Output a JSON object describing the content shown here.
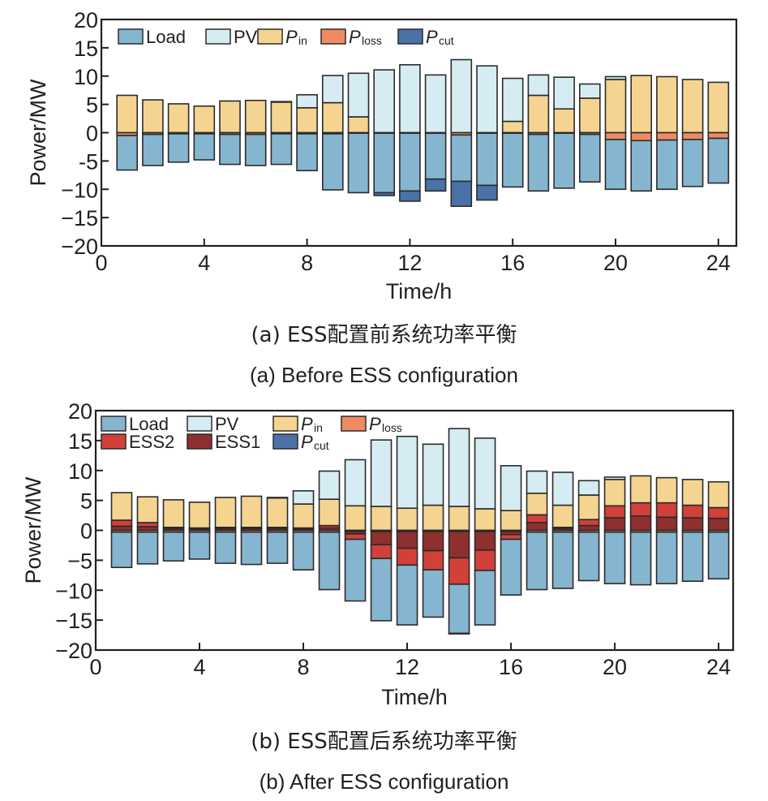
{
  "captions": {
    "a_cn": "(a) ESS配置前系统功率平衡",
    "a_en": "(a) Before ESS configuration",
    "b_cn": "(b) ESS配置后系统功率平衡",
    "b_en": "(b) After ESS configuration"
  },
  "colors": {
    "Load": "#86b5cf",
    "PV": "#d5ecf2",
    "Pin": "#f5d491",
    "Ploss": "#f08a62",
    "Pcut": "#4a72a8",
    "ESS2": "#d2403a",
    "ESS1": "#8e2f30",
    "edge": "#2b2b2b"
  },
  "chart_data": [
    {
      "type": "bar",
      "stacked": true,
      "title": "(a) Before ESS configuration",
      "xlabel": "Time/h",
      "ylabel": "Power/MW",
      "xlim": [
        0,
        24.7
      ],
      "ylim": [
        -20,
        20
      ],
      "xticks": [
        0,
        4,
        8,
        12,
        16,
        20,
        24
      ],
      "yticks": [
        20,
        15,
        10,
        5,
        0,
        -5,
        -10,
        -15,
        -20
      ],
      "ytick_labels": [
        "20",
        "15",
        "10",
        "5",
        "0",
        "-5",
        "−10",
        "−15",
        "−20"
      ],
      "grid": false,
      "legend_position": "top-left",
      "legend": [
        {
          "key": "Load",
          "label": "Load",
          "sub": ""
        },
        {
          "key": "PV",
          "label": "PV",
          "sub": ""
        },
        {
          "key": "Pin",
          "label": "P",
          "sub": "in"
        },
        {
          "key": "Ploss",
          "label": "P",
          "sub": "loss"
        },
        {
          "key": "Pcut",
          "label": "P",
          "sub": "cut"
        }
      ],
      "x": [
        1,
        2,
        3,
        4,
        5,
        6,
        7,
        8,
        9,
        10,
        11,
        12,
        13,
        14,
        15,
        16,
        17,
        18,
        19,
        20,
        21,
        22,
        23,
        24
      ],
      "positive_stack_order": [
        "Pin",
        "PV"
      ],
      "negative_stack_order": [
        "Ploss",
        "Load",
        "Pcut"
      ],
      "series": [
        {
          "name": "Pin",
          "values": [
            6.6,
            5.8,
            5.1,
            4.7,
            5.6,
            5.7,
            5.4,
            4.4,
            5.3,
            2.8,
            0,
            0,
            0,
            0,
            0,
            2.0,
            6.6,
            4.2,
            6.1,
            9.4,
            10.1,
            9.9,
            9.4,
            8.9
          ]
        },
        {
          "name": "PV",
          "values": [
            0,
            0,
            0,
            0,
            0,
            0,
            0.1,
            2.3,
            4.8,
            7.7,
            11.1,
            12.0,
            10.2,
            12.9,
            11.8,
            7.6,
            3.6,
            5.6,
            2.5,
            0.5,
            0,
            0,
            0,
            0
          ]
        },
        {
          "name": "Ploss",
          "values": [
            -0.5,
            -0.3,
            -0.2,
            -0.2,
            -0.3,
            -0.3,
            -0.2,
            -0.2,
            -0.2,
            -0.1,
            -0.1,
            -0.1,
            -0.1,
            -0.4,
            -0.1,
            -0.1,
            -0.3,
            -0.1,
            -0.3,
            -1.2,
            -1.4,
            -1.3,
            -1.2,
            -1.0
          ]
        },
        {
          "name": "Load",
          "values": [
            -6.1,
            -5.5,
            -5.0,
            -4.6,
            -5.3,
            -5.5,
            -5.4,
            -6.5,
            -9.9,
            -10.5,
            -10.5,
            -10.2,
            -8.1,
            -8.2,
            -9.2,
            -9.5,
            -10.0,
            -9.7,
            -8.4,
            -8.8,
            -8.9,
            -8.7,
            -8.3,
            -7.9
          ]
        },
        {
          "name": "Pcut",
          "values": [
            0,
            0,
            0,
            0,
            0,
            0,
            0,
            0,
            0,
            0,
            -0.5,
            -1.8,
            -2.1,
            -4.4,
            -2.6,
            0,
            0,
            0,
            0,
            0,
            0,
            0,
            0,
            0
          ]
        }
      ]
    },
    {
      "type": "bar",
      "stacked": true,
      "title": "(b) After ESS configuration",
      "xlabel": "Time/h",
      "ylabel": "Power/MW",
      "xlim": [
        0,
        24.56
      ],
      "ylim": [
        -20,
        20
      ],
      "xticks": [
        0,
        4,
        8,
        12,
        16,
        20,
        24
      ],
      "yticks": [
        20,
        15,
        10,
        5,
        0,
        -5,
        -10,
        -15,
        -20
      ],
      "ytick_labels": [
        "20",
        "15",
        "10",
        "5",
        "0",
        "−5",
        "−10",
        "−15",
        "−20"
      ],
      "grid": false,
      "legend_position": "top-left",
      "legend": [
        {
          "key": "Load",
          "label": "Load",
          "sub": ""
        },
        {
          "key": "PV",
          "label": "PV",
          "sub": ""
        },
        {
          "key": "Pin",
          "label": "P",
          "sub": "in"
        },
        {
          "key": "Ploss",
          "label": "P",
          "sub": "loss"
        },
        {
          "key": "ESS2",
          "label": "ESS2",
          "sub": ""
        },
        {
          "key": "ESS1",
          "label": "ESS1",
          "sub": ""
        },
        {
          "key": "Pcut",
          "label": "P",
          "sub": "cut"
        }
      ],
      "x": [
        1,
        2,
        3,
        4,
        5,
        6,
        7,
        8,
        9,
        10,
        11,
        12,
        13,
        14,
        15,
        16,
        17,
        18,
        19,
        20,
        21,
        22,
        23,
        24
      ],
      "positive_stack_order": [
        "ESS1",
        "ESS2",
        "Pin",
        "PV"
      ],
      "negative_stack_order": [
        "Ploss",
        "ESS1",
        "ESS2",
        "Load",
        "Pcut"
      ],
      "series": [
        {
          "name": "ESS1",
          "values": [
            0.7,
            0.6,
            0.3,
            0.2,
            0.3,
            0.3,
            0.3,
            0.2,
            0.4,
            -0.4,
            -2.2,
            -2.8,
            -3.2,
            -4.4,
            -3.1,
            -0.5,
            1.3,
            0.3,
            0.8,
            2.1,
            2.4,
            2.2,
            2.1,
            2.0
          ]
        },
        {
          "name": "ESS2",
          "values": [
            1.0,
            0.7,
            0.2,
            0.2,
            0.2,
            0.2,
            0.2,
            0.2,
            0.4,
            -0.9,
            -2.3,
            -2.8,
            -3.2,
            -4.4,
            -3.4,
            -0.8,
            1.3,
            0.2,
            1.0,
            2.0,
            2.2,
            2.4,
            2.1,
            1.8
          ]
        },
        {
          "name": "Pin",
          "values": [
            4.6,
            4.3,
            4.6,
            4.3,
            5.0,
            5.2,
            4.9,
            4.0,
            4.4,
            4.1,
            4.0,
            3.7,
            4.2,
            4.0,
            3.6,
            3.3,
            3.6,
            3.7,
            4.1,
            4.4,
            4.5,
            4.2,
            4.3,
            4.3
          ]
        },
        {
          "name": "PV",
          "values": [
            0,
            0,
            0,
            0,
            0,
            0,
            0.1,
            2.2,
            4.7,
            7.7,
            11.1,
            12.0,
            10.2,
            13.0,
            11.8,
            7.5,
            3.7,
            5.5,
            2.4,
            0.4,
            0,
            0,
            0,
            0
          ]
        },
        {
          "name": "Ploss",
          "values": [
            -0.3,
            -0.3,
            -0.3,
            -0.3,
            -0.3,
            -0.3,
            -0.3,
            -0.3,
            -0.3,
            -0.2,
            -0.2,
            -0.2,
            -0.2,
            -0.2,
            -0.2,
            -0.2,
            -0.3,
            -0.3,
            -0.3,
            -0.3,
            -0.3,
            -0.3,
            -0.3,
            -0.3
          ]
        },
        {
          "name": "Load",
          "values": [
            -5.9,
            -5.3,
            -4.8,
            -4.5,
            -5.2,
            -5.4,
            -5.2,
            -6.3,
            -9.6,
            -10.3,
            -10.4,
            -10.0,
            -7.9,
            -8.2,
            -9.1,
            -9.3,
            -9.6,
            -9.4,
            -8.1,
            -8.6,
            -8.8,
            -8.6,
            -8.2,
            -7.8
          ]
        },
        {
          "name": "Pcut",
          "values": [
            0,
            0,
            0,
            0,
            0,
            0,
            0,
            0,
            0,
            0,
            0,
            0,
            0,
            -0.1,
            0,
            0,
            0,
            0,
            0,
            0,
            0,
            0,
            0,
            0
          ]
        }
      ]
    }
  ]
}
